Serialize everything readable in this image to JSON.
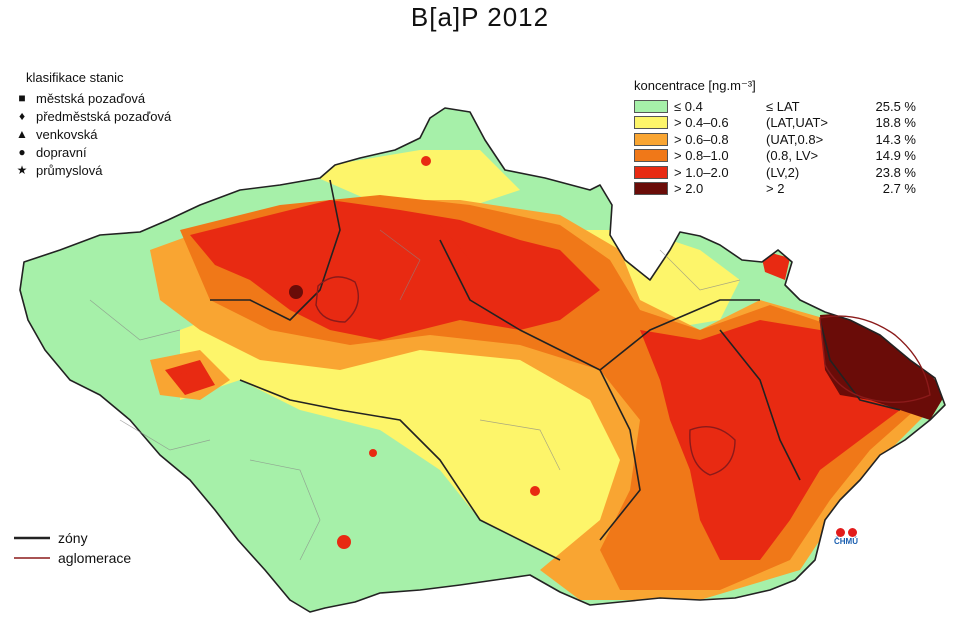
{
  "title": "B[a]P 2012",
  "stations": {
    "heading": "klasifikace stanic",
    "items": [
      {
        "symbol": "■",
        "label": "městská pozaďová",
        "icon": "square-icon"
      },
      {
        "symbol": "♦",
        "label": "předměstská pozaďová",
        "icon": "diamond-icon"
      },
      {
        "symbol": "▲",
        "label": "venkovská",
        "icon": "triangle-icon"
      },
      {
        "symbol": "●",
        "label": "dopravní",
        "icon": "circle-icon"
      },
      {
        "symbol": "★",
        "label": "průmyslová",
        "icon": "star-icon"
      }
    ]
  },
  "concentration": {
    "heading": "koncentrace [ng.m⁻³]",
    "classes": [
      {
        "color": "#a6f0a9",
        "range": "≤ 0.4",
        "limit": "≤ LAT",
        "percent": "25.5 %"
      },
      {
        "color": "#fdf56a",
        "range": "> 0.4–0.6",
        "limit": "(LAT,UAT>",
        "percent": "18.8 %"
      },
      {
        "color": "#f9a532",
        "range": "> 0.6–0.8",
        "limit": "(UAT,0.8>",
        "percent": "14.3 %"
      },
      {
        "color": "#f07818",
        "range": "> 0.8–1.0",
        "limit": "(0.8, LV>",
        "percent": "14.9 %"
      },
      {
        "color": "#e82a12",
        "range": "> 1.0–2.0",
        "limit": "(LV,2)",
        "percent": "23.8 %"
      },
      {
        "color": "#6a0c08",
        "range": "> 2.0",
        "limit": "> 2",
        "percent": "2.7 %"
      }
    ]
  },
  "boundaries": {
    "zones_label": "zóny",
    "agglomeration_label": "aglomerace",
    "zones_color": "#222222",
    "agglomeration_color": "#8b1a1a"
  },
  "logo_text": "ČHMÚ"
}
